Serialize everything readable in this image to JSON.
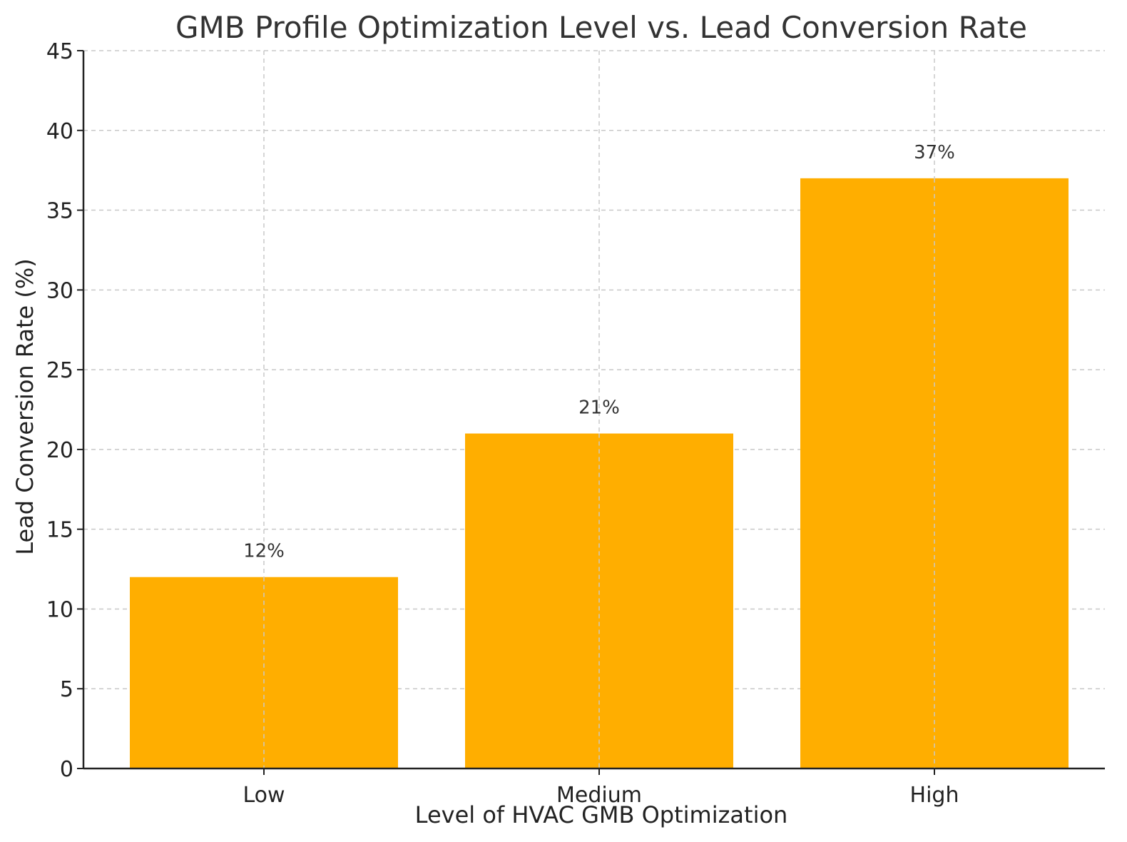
{
  "chart_data": {
    "type": "bar",
    "title": "GMB Profile Optimization Level vs. Lead Conversion Rate",
    "xlabel": "Level of HVAC GMB Optimization",
    "ylabel": "Lead Conversion Rate (%)",
    "categories": [
      "Low",
      "Medium",
      "High"
    ],
    "values": [
      12,
      21,
      37
    ],
    "value_labels": [
      "12%",
      "21%",
      "37%"
    ],
    "ylim": [
      0,
      45
    ],
    "yticks": [
      0,
      5,
      10,
      15,
      20,
      25,
      30,
      35,
      40,
      45
    ],
    "grid": true,
    "bar_color": "#FFAE00"
  }
}
